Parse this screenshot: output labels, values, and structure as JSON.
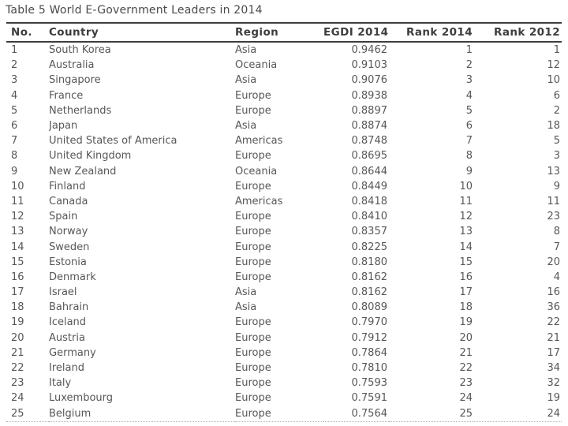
{
  "title": "Table 5 World E-Government Leaders in 2014",
  "chart_data": {
    "type": "table",
    "title": "Table 5 World E-Government Leaders in 2014",
    "columns": [
      "No.",
      "Country",
      "Region",
      "EGDI 2014",
      "Rank 2014",
      "Rank 2012"
    ],
    "column_alignments": [
      "left",
      "left",
      "left",
      "right",
      "right",
      "right"
    ],
    "rows": [
      [
        "1",
        "South Korea",
        "Asia",
        "0.9462",
        "1",
        "1"
      ],
      [
        "2",
        "Australia",
        "Oceania",
        "0.9103",
        "2",
        "12"
      ],
      [
        "3",
        "Singapore",
        "Asia",
        "0.9076",
        "3",
        "10"
      ],
      [
        "4",
        "France",
        "Europe",
        "0.8938",
        "4",
        "6"
      ],
      [
        "5",
        "Netherlands",
        "Europe",
        "0.8897",
        "5",
        "2"
      ],
      [
        "6",
        "Japan",
        "Asia",
        "0.8874",
        "6",
        "18"
      ],
      [
        "7",
        "United States of America",
        "Americas",
        "0.8748",
        "7",
        "5"
      ],
      [
        "8",
        "United Kingdom",
        "Europe",
        "0.8695",
        "8",
        "3"
      ],
      [
        "9",
        "New Zealand",
        "Oceania",
        "0.8644",
        "9",
        "13"
      ],
      [
        "10",
        "Finland",
        "Europe",
        "0.8449",
        "10",
        "9"
      ],
      [
        "11",
        "Canada",
        "Americas",
        "0.8418",
        "11",
        "11"
      ],
      [
        "12",
        "Spain",
        "Europe",
        "0.8410",
        "12",
        "23"
      ],
      [
        "13",
        "Norway",
        "Europe",
        "0.8357",
        "13",
        "8"
      ],
      [
        "14",
        "Sweden",
        "Europe",
        "0.8225",
        "14",
        "7"
      ],
      [
        "15",
        "Estonia",
        "Europe",
        "0.8180",
        "15",
        "20"
      ],
      [
        "16",
        "Denmark",
        "Europe",
        "0.8162",
        "16",
        "4"
      ],
      [
        "17",
        "Israel",
        "Asia",
        "0.8162",
        "17",
        "16"
      ],
      [
        "18",
        "Bahrain",
        "Asia",
        "0.8089",
        "18",
        "36"
      ],
      [
        "19",
        "Iceland",
        "Europe",
        "0.7970",
        "19",
        "22"
      ],
      [
        "20",
        "Austria",
        "Europe",
        "0.7912",
        "20",
        "21"
      ],
      [
        "21",
        "Germany",
        "Europe",
        "0.7864",
        "21",
        "17"
      ],
      [
        "22",
        "Ireland",
        "Europe",
        "0.7810",
        "22",
        "34"
      ],
      [
        "23",
        "Italy",
        "Europe",
        "0.7593",
        "23",
        "32"
      ],
      [
        "24",
        "Luxembourg",
        "Europe",
        "0.7591",
        "24",
        "19"
      ],
      [
        "25",
        "Belgium",
        "Europe",
        "0.7564",
        "25",
        "24"
      ]
    ]
  },
  "colors": {
    "title_text": "#4a4a4a",
    "header_text": "#3d3d3d",
    "body_text": "#575757",
    "rule": "#3d3d3d",
    "background": "#ffffff"
  }
}
